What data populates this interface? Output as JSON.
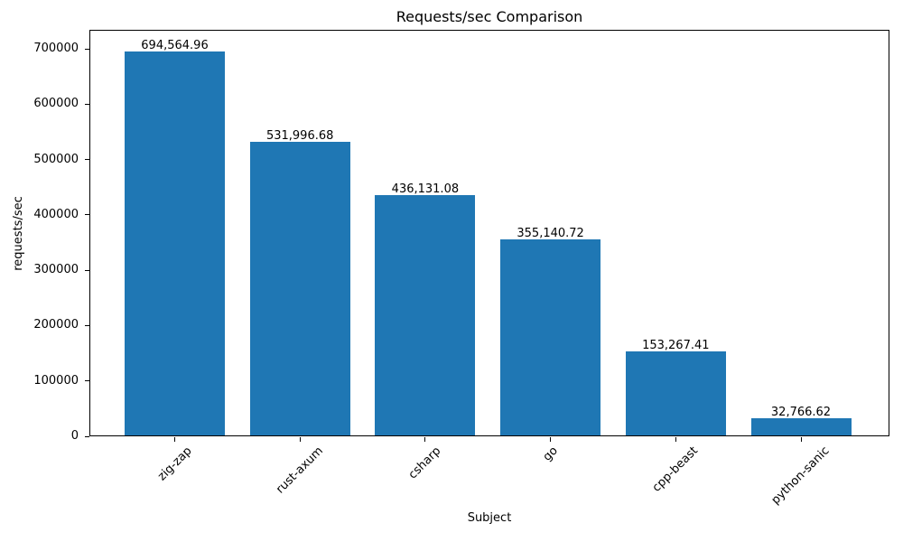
{
  "chart_data": {
    "type": "bar",
    "title": "Requests/sec Comparison",
    "xlabel": "Subject",
    "ylabel": "requests/sec",
    "categories": [
      "zig-zap",
      "rust-axum",
      "csharp",
      "go",
      "cpp-beast",
      "python-sanic"
    ],
    "values": [
      694564.96,
      531996.68,
      436131.08,
      355140.72,
      153267.41,
      32766.62
    ],
    "value_labels": [
      "694,564.96",
      "531,996.68",
      "436,131.08",
      "355,140.72",
      "153,267.41",
      "32,766.62"
    ],
    "bar_color": "#1f77b4",
    "text_color": "#000000",
    "background_color": "#ffffff",
    "ylim": [
      0,
      734266
    ],
    "yticks": [
      0,
      100000,
      200000,
      300000,
      400000,
      500000,
      600000,
      700000
    ],
    "ytick_labels": [
      "0",
      "100000",
      "200000",
      "300000",
      "400000",
      "500000",
      "600000",
      "700000"
    ],
    "grid": false,
    "legend": "none"
  }
}
